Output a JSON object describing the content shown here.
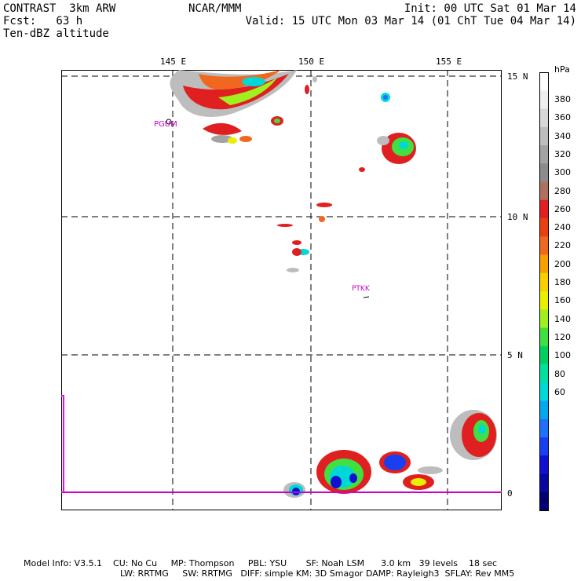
{
  "header": {
    "left_line1": "CONTRAST  3km ARW",
    "left_line2": "Fcst:   63 h",
    "left_line3": "Ten-dBZ altitude",
    "center_line1": "NCAR/MMM",
    "right_line1": "Init: 00 UTC Sat 01 Mar 14",
    "right_line2": "Valid: 15 UTC Mon 03 Mar 14 (01 ChT Tue 04 Mar 14)"
  },
  "map": {
    "lon_labels": [
      "145 E",
      "150 E",
      "155 E"
    ],
    "lat_labels": [
      "15 N",
      "10 N",
      "5 N",
      "0"
    ],
    "stations": [
      {
        "id": "PGUM",
        "label": "PGUM"
      },
      {
        "id": "PTKK",
        "label": "PTKK"
      }
    ],
    "colors": {
      "grid": "#000000",
      "equator_line": "#cc00cc",
      "station_label": "#cc00cc"
    }
  },
  "colorbar": {
    "unit": "hPa",
    "levels": [
      "380",
      "360",
      "340",
      "320",
      "300",
      "280",
      "260",
      "240",
      "220",
      "200",
      "180",
      "160",
      "140",
      "120",
      "100",
      "80",
      "60"
    ],
    "colors": [
      "#ffffff",
      "#eeeeee",
      "#d8d8d8",
      "#bdbdbd",
      "#a3a3a3",
      "#8c8c8c",
      "#b07060",
      "#e02020",
      "#e84010",
      "#f06820",
      "#f8a000",
      "#f8d000",
      "#e8f000",
      "#a0f020",
      "#40e040",
      "#00d060",
      "#00e0a0",
      "#00d8d8",
      "#00a8f0",
      "#2070f8",
      "#1840f0",
      "#1010d0",
      "#0808a0",
      "#000070"
    ]
  },
  "footer": {
    "line1": "Model Info: V3.5.1    CU: No Cu     MP: Thompson     PBL: YSU       SF: Noah LSM      3.0 km   39 levels    18 sec",
    "line2": "LW: RRTMG     SW: RRTMG   DIFF: simple KM: 3D Smagor DAMP: Rayleigh3  SFLAY: Rev MM5"
  }
}
